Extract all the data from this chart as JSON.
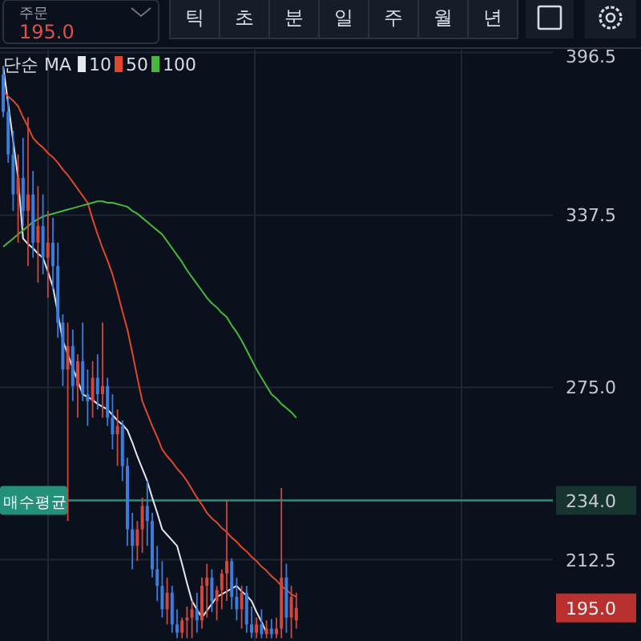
{
  "chart_data": {
    "type": "candlestick",
    "legend_title": "단순 MA",
    "legend": "top left",
    "grid": true,
    "categories": [
      null,
      null,
      null,
      null,
      null,
      null,
      null,
      null,
      null,
      null,
      null,
      null,
      null,
      null,
      null,
      null,
      null,
      null,
      null,
      null,
      null,
      null,
      null,
      null,
      null,
      null,
      null,
      null,
      null,
      null,
      null,
      null,
      null,
      null,
      null,
      null,
      null,
      null,
      null,
      null,
      null,
      null,
      null,
      null,
      null,
      null,
      null,
      null,
      null,
      null,
      null,
      null,
      null,
      null,
      null,
      null,
      null,
      null,
      null,
      null
    ],
    "ohlc": [
      [
        388.5,
        391.5,
        373,
        375
      ],
      [
        375,
        380,
        356.5,
        359.5
      ],
      [
        359.5,
        368,
        339,
        345
      ],
      [
        345,
        359.5,
        327.5,
        351
      ],
      [
        351,
        365.5,
        333.5,
        339
      ],
      [
        339,
        373,
        319,
        345
      ],
      [
        345,
        353.5,
        322,
        327.5
      ],
      [
        327.5,
        348,
        313,
        333.5
      ],
      [
        333.5,
        345,
        316,
        322
      ],
      [
        322,
        339,
        307.5,
        327.5
      ],
      [
        327.5,
        336.5,
        310.5,
        319
      ],
      [
        319,
        327.5,
        293,
        298.5
      ],
      [
        298.5,
        301.5,
        275.5,
        281.5
      ],
      [
        281.5,
        298.5,
        226.5,
        290
      ],
      [
        290,
        296,
        270,
        275.5
      ],
      [
        275.5,
        287,
        264,
        284.5
      ],
      [
        284.5,
        298.5,
        270,
        272.5
      ],
      [
        272.5,
        281.5,
        261,
        270
      ],
      [
        270,
        284.5,
        264,
        278.5
      ],
      [
        278.5,
        287,
        267,
        272.5
      ],
      [
        272.5,
        298.5,
        264,
        275.5
      ],
      [
        275.5,
        278.5,
        261,
        264
      ],
      [
        264,
        272.5,
        252.5,
        258
      ],
      [
        258,
        267,
        246.5,
        261
      ],
      [
        261,
        263,
        241,
        246.5
      ],
      [
        246.5,
        249.5,
        217.5,
        223.5
      ],
      [
        223.5,
        229.5,
        209,
        217.5
      ],
      [
        217.5,
        226.5,
        212,
        223.5
      ],
      [
        223.5,
        235,
        215,
        232
      ],
      [
        232,
        241,
        217.5,
        226.5
      ],
      [
        226.5,
        229.5,
        206,
        209
      ],
      [
        209,
        217.5,
        197.5,
        203
      ],
      [
        203,
        212,
        191.5,
        194.5
      ],
      [
        194.5,
        206,
        189,
        200.5
      ],
      [
        200.5,
        203,
        186,
        189
      ],
      [
        189,
        194.5,
        184,
        186
      ],
      [
        186,
        191.5,
        184,
        190.5
      ],
      [
        190.5,
        195.5,
        184,
        191.5
      ],
      [
        191.5,
        197.5,
        184,
        194.5
      ],
      [
        194.5,
        200.5,
        186,
        190.5
      ],
      [
        190.5,
        206,
        187.5,
        203
      ],
      [
        203,
        211,
        191.5,
        206
      ],
      [
        206,
        209,
        193.5,
        197.5
      ],
      [
        197.5,
        203,
        190.5,
        201.5
      ],
      [
        201.5,
        209,
        194.5,
        207.5
      ],
      [
        207.5,
        234,
        197.5,
        212
      ],
      [
        212,
        213,
        194.5,
        199
      ],
      [
        199,
        206,
        190.5,
        194.5
      ],
      [
        194.5,
        203,
        187.5,
        200.5
      ],
      [
        200.5,
        203,
        186,
        189
      ],
      [
        189,
        195.5,
        184,
        186
      ],
      [
        186,
        191.5,
        184,
        189
      ],
      [
        189,
        194.5,
        184,
        185.5
      ],
      [
        185.5,
        190.5,
        184,
        187.5
      ],
      [
        187.5,
        191,
        184,
        185.5
      ],
      [
        185.5,
        191.5,
        184,
        187.5
      ],
      [
        187.5,
        238.5,
        184,
        206
      ],
      [
        206,
        211,
        186,
        191.5
      ],
      [
        191.5,
        203,
        184,
        199
      ],
      [
        190.5,
        200.5,
        187.5,
        195.0
      ]
    ],
    "colors": [
      "#3b7ddd",
      "#3b7ddd",
      "#3b7ddd",
      "#d2463c",
      "#3b7ddd",
      "#d2463c",
      "#3b7ddd",
      "#d2463c",
      "#3b7ddd",
      "#d2463c",
      "#3b7ddd",
      "#3b7ddd",
      "#3b7ddd",
      "#d2463c",
      "#3b7ddd",
      "#d2463c",
      "#3b7ddd",
      "#3b7ddd",
      "#d2463c",
      "#3b7ddd",
      "#d2463c",
      "#3b7ddd",
      "#3b7ddd",
      "#d2463c",
      "#3b7ddd",
      "#3b7ddd",
      "#3b7ddd",
      "#d2463c",
      "#d2463c",
      "#3b7ddd",
      "#3b7ddd",
      "#3b7ddd",
      "#3b7ddd",
      "#d2463c",
      "#3b7ddd",
      "#3b7ddd",
      "#d2463c",
      "#d2463c",
      "#d2463c",
      "#3b7ddd",
      "#d2463c",
      "#d2463c",
      "#3b7ddd",
      "#d2463c",
      "#d2463c",
      "#d2463c",
      "#3b7ddd",
      "#3b7ddd",
      "#d2463c",
      "#3b7ddd",
      "#3b7ddd",
      "#d2463c",
      "#3b7ddd",
      "#d2463c",
      "#3b7ddd",
      "#d2463c",
      "#d2463c",
      "#3b7ddd",
      "#d2463c",
      "#d2463c"
    ],
    "series": [
      {
        "name": "10",
        "type": "line",
        "color": "#e6e8ef",
        "values": [
          391.5,
          378,
          364.5,
          351,
          329,
          327,
          325.5,
          323.5,
          322,
          317,
          311.5,
          302,
          292,
          287,
          282,
          277.5,
          272.5,
          271.5,
          270.5,
          269,
          268,
          267,
          265,
          263,
          261.5,
          259.5,
          255,
          250,
          245.5,
          241,
          235,
          229.5,
          223.5,
          221.5,
          219.5,
          217.5,
          211,
          204,
          197.5,
          194.5,
          191.5,
          194,
          196.5,
          199,
          200,
          201,
          202,
          203,
          201,
          199.5,
          197.5,
          193.5,
          190,
          186,
          null,
          null,
          null,
          null,
          null,
          null
        ]
      },
      {
        "name": "50",
        "type": "line",
        "color": "#e0472c",
        "values": [
          382.5,
          380.5,
          379,
          377,
          373,
          369.5,
          365.5,
          363.5,
          362,
          360,
          358.5,
          356.5,
          354,
          352,
          349.5,
          347,
          344.5,
          342,
          336,
          330.5,
          325.5,
          321,
          316,
          309.5,
          302.5,
          296,
          287.5,
          278.5,
          270,
          265.5,
          261,
          257,
          252.5,
          250,
          248,
          245.5,
          243.5,
          241,
          238,
          235,
          232.5,
          229.5,
          227.5,
          226,
          224,
          222.5,
          220.5,
          219,
          217,
          215.5,
          213.5,
          212,
          210,
          208.5,
          206.5,
          205,
          203,
          201.5,
          200,
          199
        ]
      },
      {
        "name": "100",
        "type": "line",
        "color": "#46b83e",
        "values": [
          326,
          327.5,
          329,
          330.5,
          332,
          333.5,
          335,
          336,
          337,
          337.5,
          338,
          338.5,
          339,
          339.5,
          340,
          340.5,
          341,
          341.5,
          342,
          342.5,
          342.5,
          342,
          342,
          341.5,
          341,
          340.5,
          339,
          338,
          336.5,
          335,
          333.5,
          332,
          330.5,
          328,
          325.5,
          323,
          320.5,
          317.5,
          315,
          312.5,
          310,
          307.5,
          305.5,
          304,
          302,
          300.5,
          297.5,
          295,
          292,
          288.5,
          285,
          281.5,
          278.5,
          275.5,
          272.5,
          271,
          269,
          267.5,
          266,
          264
        ]
      }
    ],
    "ylim": [
      183,
      397.5
    ],
    "yticks": [
      396.5,
      337.5,
      {
        "value": 275,
        "label": "275.0"
      },
      {
        "value": 234,
        "label": "234.0"
      },
      212.5
    ],
    "ref_lines": [
      {
        "axis": "y",
        "value": 234.0,
        "label": "매수평균",
        "color": "#23917a"
      }
    ],
    "annotations": [
      "주문",
      "195.0",
      "틱",
      "초",
      "분",
      "일",
      "주",
      "월",
      "년",
      "195.0"
    ]
  }
}
